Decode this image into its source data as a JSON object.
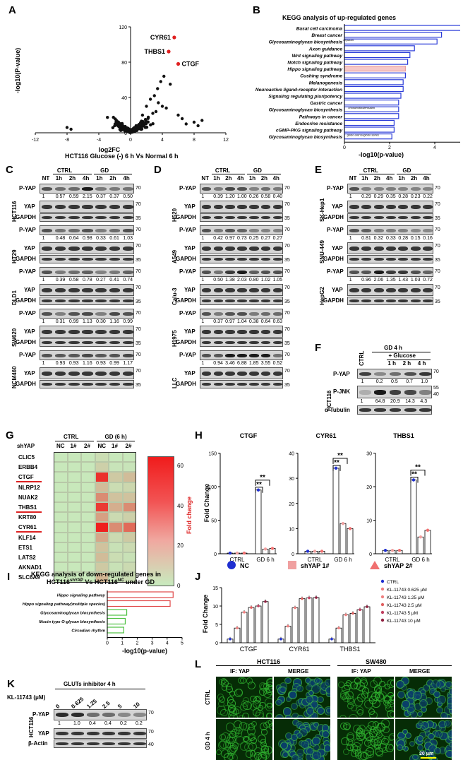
{
  "panels": {
    "A": "A",
    "B": "B",
    "C": "C",
    "D": "D",
    "E": "E",
    "F": "F",
    "G": "G",
    "H": "H",
    "I": "I",
    "J": "J",
    "K": "K",
    "L": "L"
  },
  "A": {
    "ylabel": "-log10(P-value)",
    "xlabel": "log2FC",
    "caption": "HCT116  Glucose (-) 6 h Vs Normal 6 h",
    "xticks": [
      "-12",
      "-8",
      "-4",
      "0",
      "4",
      "8",
      "12"
    ],
    "yticks": [
      "0",
      "40",
      "80",
      "120"
    ],
    "genes": [
      "CYR61",
      "THBS1",
      "CTGF"
    ]
  },
  "B": {
    "title": "KEGG analysis of up-regulated genes",
    "xlabel": "-log10(p-value)",
    "xticks": [
      "0",
      "2",
      "4",
      "6",
      "8"
    ],
    "terms": [
      "Basal cell carcinoma",
      "Breast cancer",
      "Glycosaminoglycan biosynthesis",
      "Axon guidance",
      "Wnt signaling pathway",
      "Notch signaling pathway",
      "Hippo signaling pathway",
      "Cushing syndrome",
      "Melanogenesis",
      "Neuroactive ligand-receptor interaction",
      "Signaling regulating pluripotency",
      "Gastric cancer",
      "Glycosaminoglycan biosynthesis",
      "Pathways in cancer",
      "Endocrine resistance",
      "cGMP-PKG signaling pathway",
      "Glycosaminoglycan biosynthesis"
    ],
    "subs": {
      "2": "heparan",
      "12": "chondroitin/dermatan",
      "16": "globo and isoglobo series"
    }
  },
  "blot": {
    "ctrl": "CTRL",
    "gd": "GD",
    "lanes": [
      "NT",
      "1h",
      "2h",
      "4h",
      "1h",
      "2h",
      "4h"
    ],
    "pyap": "P-YAP",
    "yap": "YAP",
    "gapdh": "GAPDH",
    "m70": "70",
    "m35": "35"
  },
  "C": {
    "lines": [
      "HCT116",
      "HT29",
      "DLD1",
      "SW620",
      "NCM460"
    ],
    "q": [
      [
        "1",
        "0.57",
        "0.59",
        "2.15",
        "0.37",
        "0.37",
        "0.50"
      ],
      [
        "1",
        "0.48",
        "0.64",
        "0.98",
        "0.33",
        "0.61",
        "1.03"
      ],
      [
        "1",
        "0.39",
        "0.58",
        "0.78",
        "0.27",
        "0.41",
        "0.74"
      ],
      [
        "1",
        "0.31",
        "0.99",
        "1.13",
        "0.30",
        "1.16",
        "0.99"
      ],
      [
        "1",
        "0.93",
        "0.93",
        "1.16",
        "0.93",
        "0.99",
        "1.17"
      ]
    ]
  },
  "D": {
    "lines": [
      "H520",
      "A549",
      "Calu-3",
      "H1975",
      "LLC"
    ],
    "q": [
      [
        "1",
        "0.39",
        "1.20",
        "1.00",
        "0.26",
        "0.58",
        "0.40"
      ],
      [
        "1",
        "0.42",
        "0.97",
        "0.73",
        "0.25",
        "0.27",
        "0.27"
      ],
      [
        "1",
        "0.50",
        "1.38",
        "2.03",
        "0.80",
        "1.02",
        "1.05"
      ],
      [
        "1",
        "0.37",
        "0.97",
        "1.04",
        "0.38",
        "0.64",
        "0.63"
      ],
      [
        "1",
        "0.94",
        "3.46",
        "6.88",
        "1.85",
        "3.55",
        "0.52"
      ]
    ]
  },
  "E": {
    "lines": [
      "SK-Hep1",
      "SNU-449",
      "HepG2"
    ],
    "q": [
      [
        "1",
        "0.29",
        "0.29",
        "0.35",
        "0.28",
        "0.23",
        "0.22"
      ],
      [
        "1",
        "0.81",
        "0.32",
        "0.33",
        "0.28",
        "0.15",
        "0.16"
      ],
      [
        "1",
        "0.96",
        "2.06",
        "1.35",
        "1.43",
        "1.03",
        "0.72"
      ]
    ]
  },
  "F": {
    "gd4h": "GD 4 h",
    "glucose": "+ Glucose",
    "ctrl": "CTRL",
    "lanes": [
      "1 h",
      "2 h",
      "4 h"
    ],
    "line": "HCT116",
    "rows": [
      "P-YAP",
      "P-JNK",
      "α-Tubulin"
    ],
    "q1": [
      "1",
      "0.2",
      "0.5",
      "0.7",
      "1.0"
    ],
    "q2": [
      "1",
      "64.8",
      "20.9",
      "14.3",
      "4.3"
    ],
    "m": [
      "70",
      "55",
      "40"
    ]
  },
  "G": {
    "shyap": "shYAP",
    "ctrl": "CTRL",
    "gd": "GD (6 h)",
    "cols": [
      "NC",
      "1#",
      "2#",
      "NC",
      "1#",
      "2#"
    ],
    "genes": [
      "CLIC5",
      "ERBB4",
      "CTGF",
      "NLRP12",
      "NUAK2",
      "THBS1",
      "KRT80",
      "CYR61",
      "KLF14",
      "ETS1",
      "LATS2",
      "AKNAD1",
      "SLC6A9"
    ],
    "scale": "Fold change",
    "scale_ticks": [
      "60",
      "40",
      "20",
      "0"
    ],
    "values": [
      [
        1,
        1,
        1,
        4,
        1,
        1
      ],
      [
        1,
        1,
        1,
        8,
        2,
        2
      ],
      [
        1,
        1,
        1,
        55,
        10,
        14
      ],
      [
        1,
        1,
        1,
        14,
        4,
        6
      ],
      [
        1,
        1,
        1,
        28,
        12,
        12
      ],
      [
        1,
        1,
        1,
        52,
        18,
        28
      ],
      [
        1,
        1,
        1,
        22,
        5,
        8
      ],
      [
        1,
        1,
        1,
        60,
        28,
        38
      ],
      [
        1,
        1,
        1,
        20,
        5,
        10
      ],
      [
        1,
        1,
        1,
        12,
        3,
        5
      ],
      [
        1,
        1,
        1,
        14,
        4,
        3
      ],
      [
        1,
        1,
        1,
        10,
        3,
        5
      ],
      [
        1,
        1,
        1,
        16,
        3,
        4
      ]
    ]
  },
  "H": {
    "ylabel": "Fold Change",
    "titles": [
      "CTGF",
      "CYR61",
      "THBS1"
    ],
    "cats": [
      "CTRL",
      "GD 6 h"
    ],
    "yticks": [
      [
        "0",
        "50",
        "100",
        "150"
      ],
      [
        "0",
        "10",
        "20",
        "30",
        "40"
      ],
      [
        "0",
        "10",
        "20",
        "30"
      ]
    ],
    "legend": [
      "NC",
      "shYAP 1#",
      "shYAP 2#"
    ],
    "sig": "**",
    "chart_data": [
      {
        "type": "bar",
        "title": "CTGF",
        "categories": [
          "CTRL",
          "GD 6 h"
        ],
        "ylim": [
          0,
          150
        ],
        "series": [
          {
            "name": "NC",
            "values": [
              1,
              95
            ]
          },
          {
            "name": "shYAP 1#",
            "values": [
              1,
              7
            ]
          },
          {
            "name": "shYAP 2#",
            "values": [
              1,
              8
            ]
          }
        ]
      },
      {
        "type": "bar",
        "title": "CYR61",
        "categories": [
          "CTRL",
          "GD 6 h"
        ],
        "ylim": [
          0,
          40
        ],
        "series": [
          {
            "name": "NC",
            "values": [
              1,
              34
            ]
          },
          {
            "name": "shYAP 1#",
            "values": [
              1,
              12
            ]
          },
          {
            "name": "shYAP 2#",
            "values": [
              1,
              10
            ]
          }
        ]
      },
      {
        "type": "bar",
        "title": "THBS1",
        "categories": [
          "CTRL",
          "GD 6 h"
        ],
        "ylim": [
          0,
          30
        ],
        "series": [
          {
            "name": "NC",
            "values": [
              1,
              22
            ]
          },
          {
            "name": "shYAP 1#",
            "values": [
              1,
              5
            ]
          },
          {
            "name": "shYAP 2#",
            "values": [
              1,
              7
            ]
          }
        ]
      }
    ]
  },
  "I": {
    "title1": "KEGG analysis of down-regulated genes in",
    "title2": "HCT116",
    "sup1": "shYAP",
    "vs": " Vs HCT116",
    "sup2": "NC",
    "title3": " under GD",
    "xlabel": "-log10(p-value)",
    "xticks": [
      "0",
      "1",
      "2",
      "3",
      "4",
      "5"
    ],
    "terms": [
      "Hippo signaling pathway",
      "Hippo signaling pathway(multiple species)",
      "Glycosaminoglycan biosynthesis",
      "Mucin type O-glycan biosynthesis",
      "Circadian rhythm"
    ]
  },
  "J": {
    "ylabel": "Fold Change",
    "yticks": [
      "0",
      "5",
      "10",
      "15"
    ],
    "cats": [
      "CTGF",
      "CYR61",
      "THBS1"
    ],
    "legend": [
      "CTRL",
      "KL-11743 0.625 μM",
      "KL-11743 1.25 μM",
      "KL-11743 2.5 μM",
      "KL-11743 5 μM",
      "KL-11743 10 μM"
    ],
    "chart_data": {
      "type": "bar",
      "categories": [
        "CTGF",
        "CYR61",
        "THBS1"
      ],
      "ylim": [
        0,
        15
      ],
      "series": [
        {
          "name": "CTRL",
          "values": [
            1,
            1,
            1
          ]
        },
        {
          "name": "KL-11743 0.625 μM",
          "values": [
            4,
            4.5,
            4
          ]
        },
        {
          "name": "KL-11743 1.25 μM",
          "values": [
            8.3,
            9.5,
            7.6
          ]
        },
        {
          "name": "KL-11743 2.5 μM",
          "values": [
            9.6,
            12,
            8
          ]
        },
        {
          "name": "KL-11743 5 μM",
          "values": [
            10,
            12.2,
            9
          ]
        },
        {
          "name": "KL-11743 10 μM",
          "values": [
            11.2,
            12.3,
            9.8
          ]
        }
      ]
    }
  },
  "K": {
    "drug": "KL-11743 (μM)",
    "header": "GLUTs inhibitor 4 h",
    "doses": [
      "0",
      "0.625",
      "1.25",
      "2.5",
      "5",
      "10"
    ],
    "line": "HCT116",
    "rows": [
      "P-YAP",
      "YAP",
      "β-Actin"
    ],
    "q": [
      "1",
      "1.0",
      "0.4",
      "0.4",
      "0.2",
      "0.2"
    ],
    "m": [
      "70",
      "70",
      "40"
    ]
  },
  "L": {
    "hct": "HCT116",
    "sw": "SW480",
    "if": "IF: YAP",
    "merge": "MERGE",
    "ctrl": "CTRL",
    "gd": "GD 4 h",
    "scale": "20 μm"
  }
}
